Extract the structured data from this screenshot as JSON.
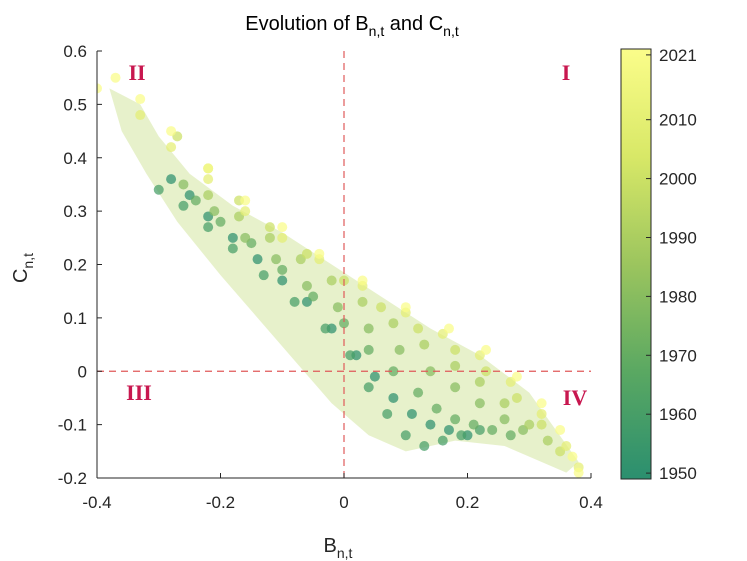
{
  "chart_data": {
    "type": "scatter",
    "title": {
      "main": "Evolution of B",
      "sub1": "n,t",
      "mid": " and C",
      "sub2": "n,t"
    },
    "xlabel": {
      "main": "B",
      "sub": "n,t"
    },
    "ylabel": {
      "main": "C",
      "sub": "n,t"
    },
    "xlim": [
      -0.4,
      0.4
    ],
    "ylim": [
      -0.2,
      0.6
    ],
    "xticks": [
      "-0.4",
      "-0.2",
      "0",
      "0.2",
      "0.4"
    ],
    "yticks": [
      "-0.2",
      "-0.1",
      "0",
      "0.1",
      "0.2",
      "0.3",
      "0.4",
      "0.5",
      "0.6"
    ],
    "reference_lines": {
      "x": 0,
      "y": 0,
      "style": "dashed",
      "color": "#e05a5a"
    },
    "quadrant_labels": [
      {
        "label": "I",
        "position": "top-right"
      },
      {
        "label": "II",
        "position": "top-left"
      },
      {
        "label": "III",
        "position": "bottom-left"
      },
      {
        "label": "IV",
        "position": "bottom-right"
      }
    ],
    "colorbar": {
      "ticks": [
        "1950",
        "1960",
        "1970",
        "1980",
        "1990",
        "2000",
        "2010",
        "2021"
      ],
      "range": [
        1949,
        2022
      ],
      "colors": [
        "#2b8f6f",
        "#5aa862",
        "#9cc55e",
        "#d8e867",
        "#fbfd8a"
      ]
    },
    "trend_polygon": [
      [
        -0.38,
        0.53
      ],
      [
        -0.33,
        0.5
      ],
      [
        -0.3,
        0.44
      ],
      [
        -0.25,
        0.37
      ],
      [
        -0.18,
        0.31
      ],
      [
        -0.1,
        0.26
      ],
      [
        -0.02,
        0.2
      ],
      [
        0.06,
        0.14
      ],
      [
        0.14,
        0.08
      ],
      [
        0.22,
        0.03
      ],
      [
        0.3,
        -0.04
      ],
      [
        0.38,
        -0.17
      ],
      [
        0.36,
        -0.19
      ],
      [
        0.26,
        -0.14
      ],
      [
        0.18,
        -0.13
      ],
      [
        0.1,
        -0.15
      ],
      [
        0.04,
        -0.12
      ],
      [
        -0.02,
        -0.06
      ],
      [
        -0.08,
        0.02
      ],
      [
        -0.14,
        0.1
      ],
      [
        -0.2,
        0.18
      ],
      [
        -0.27,
        0.28
      ],
      [
        -0.32,
        0.37
      ],
      [
        -0.36,
        0.45
      ]
    ],
    "series": [
      {
        "year": 1950,
        "points": [
          [
            -0.28,
            0.36
          ],
          [
            -0.25,
            0.33
          ],
          [
            -0.22,
            0.29
          ],
          [
            -0.18,
            0.25
          ],
          [
            -0.14,
            0.21
          ],
          [
            -0.1,
            0.17
          ],
          [
            -0.06,
            0.13
          ],
          [
            -0.02,
            0.08
          ],
          [
            0.02,
            0.03
          ],
          [
            0.05,
            -0.01
          ],
          [
            0.08,
            -0.05
          ],
          [
            0.11,
            -0.08
          ],
          [
            0.14,
            -0.1
          ],
          [
            0.17,
            -0.11
          ],
          [
            0.2,
            -0.12
          ]
        ]
      },
      {
        "year": 1960,
        "points": [
          [
            -0.3,
            0.34
          ],
          [
            -0.26,
            0.31
          ],
          [
            -0.22,
            0.27
          ],
          [
            -0.18,
            0.23
          ],
          [
            -0.13,
            0.18
          ],
          [
            -0.08,
            0.13
          ],
          [
            -0.03,
            0.08
          ],
          [
            0.01,
            0.03
          ],
          [
            0.04,
            -0.03
          ],
          [
            0.07,
            -0.08
          ],
          [
            0.1,
            -0.12
          ],
          [
            0.13,
            -0.14
          ],
          [
            0.16,
            -0.13
          ],
          [
            0.19,
            -0.12
          ],
          [
            0.22,
            -0.11
          ]
        ]
      },
      {
        "year": 1970,
        "points": [
          [
            -0.24,
            0.32
          ],
          [
            -0.2,
            0.28
          ],
          [
            -0.15,
            0.24
          ],
          [
            -0.1,
            0.19
          ],
          [
            -0.05,
            0.14
          ],
          [
            0.0,
            0.09
          ],
          [
            0.04,
            0.04
          ],
          [
            0.08,
            0.0
          ],
          [
            0.12,
            -0.04
          ],
          [
            0.15,
            -0.07
          ],
          [
            0.18,
            -0.09
          ],
          [
            0.21,
            -0.1
          ],
          [
            0.24,
            -0.11
          ],
          [
            0.27,
            -0.12
          ]
        ]
      },
      {
        "year": 1980,
        "points": [
          [
            -0.26,
            0.35
          ],
          [
            -0.21,
            0.3
          ],
          [
            -0.16,
            0.25
          ],
          [
            -0.11,
            0.21
          ],
          [
            -0.06,
            0.16
          ],
          [
            -0.01,
            0.12
          ],
          [
            0.04,
            0.08
          ],
          [
            0.09,
            0.04
          ],
          [
            0.14,
            0.0
          ],
          [
            0.18,
            -0.03
          ],
          [
            0.22,
            -0.06
          ],
          [
            0.26,
            -0.09
          ],
          [
            0.29,
            -0.11
          ]
        ]
      },
      {
        "year": 1990,
        "points": [
          [
            -0.22,
            0.33
          ],
          [
            -0.17,
            0.29
          ],
          [
            -0.12,
            0.25
          ],
          [
            -0.07,
            0.21
          ],
          [
            -0.02,
            0.17
          ],
          [
            0.03,
            0.13
          ],
          [
            0.08,
            0.09
          ],
          [
            0.13,
            0.05
          ],
          [
            0.18,
            0.01
          ],
          [
            0.22,
            -0.02
          ],
          [
            0.26,
            -0.06
          ],
          [
            0.3,
            -0.1
          ],
          [
            0.33,
            -0.13
          ]
        ]
      },
      {
        "year": 2000,
        "points": [
          [
            -0.27,
            0.44
          ],
          [
            -0.22,
            0.38
          ],
          [
            -0.17,
            0.32
          ],
          [
            -0.12,
            0.27
          ],
          [
            -0.06,
            0.22
          ],
          [
            0.0,
            0.17
          ],
          [
            0.06,
            0.12
          ],
          [
            0.12,
            0.08
          ],
          [
            0.18,
            0.04
          ],
          [
            0.23,
            0.0
          ],
          [
            0.28,
            -0.05
          ],
          [
            0.32,
            -0.1
          ],
          [
            0.35,
            -0.15
          ]
        ]
      },
      {
        "year": 2010,
        "points": [
          [
            -0.33,
            0.48
          ],
          [
            -0.28,
            0.42
          ],
          [
            -0.22,
            0.36
          ],
          [
            -0.16,
            0.3
          ],
          [
            -0.1,
            0.25
          ],
          [
            -0.04,
            0.21
          ],
          [
            0.03,
            0.16
          ],
          [
            0.1,
            0.11
          ],
          [
            0.16,
            0.07
          ],
          [
            0.22,
            0.03
          ],
          [
            0.27,
            -0.02
          ],
          [
            0.32,
            -0.08
          ],
          [
            0.36,
            -0.14
          ],
          [
            0.38,
            -0.18
          ]
        ]
      },
      {
        "year": 2021,
        "points": [
          [
            -0.4,
            0.53
          ],
          [
            -0.37,
            0.55
          ],
          [
            -0.33,
            0.51
          ],
          [
            -0.28,
            0.45
          ],
          [
            -0.22,
            0.38
          ],
          [
            -0.16,
            0.32
          ],
          [
            -0.1,
            0.27
          ],
          [
            -0.04,
            0.22
          ],
          [
            0.03,
            0.17
          ],
          [
            0.1,
            0.12
          ],
          [
            0.17,
            0.08
          ],
          [
            0.23,
            0.04
          ],
          [
            0.28,
            -0.01
          ],
          [
            0.32,
            -0.06
          ],
          [
            0.35,
            -0.11
          ],
          [
            0.37,
            -0.16
          ],
          [
            0.38,
            -0.19
          ]
        ]
      }
    ]
  }
}
